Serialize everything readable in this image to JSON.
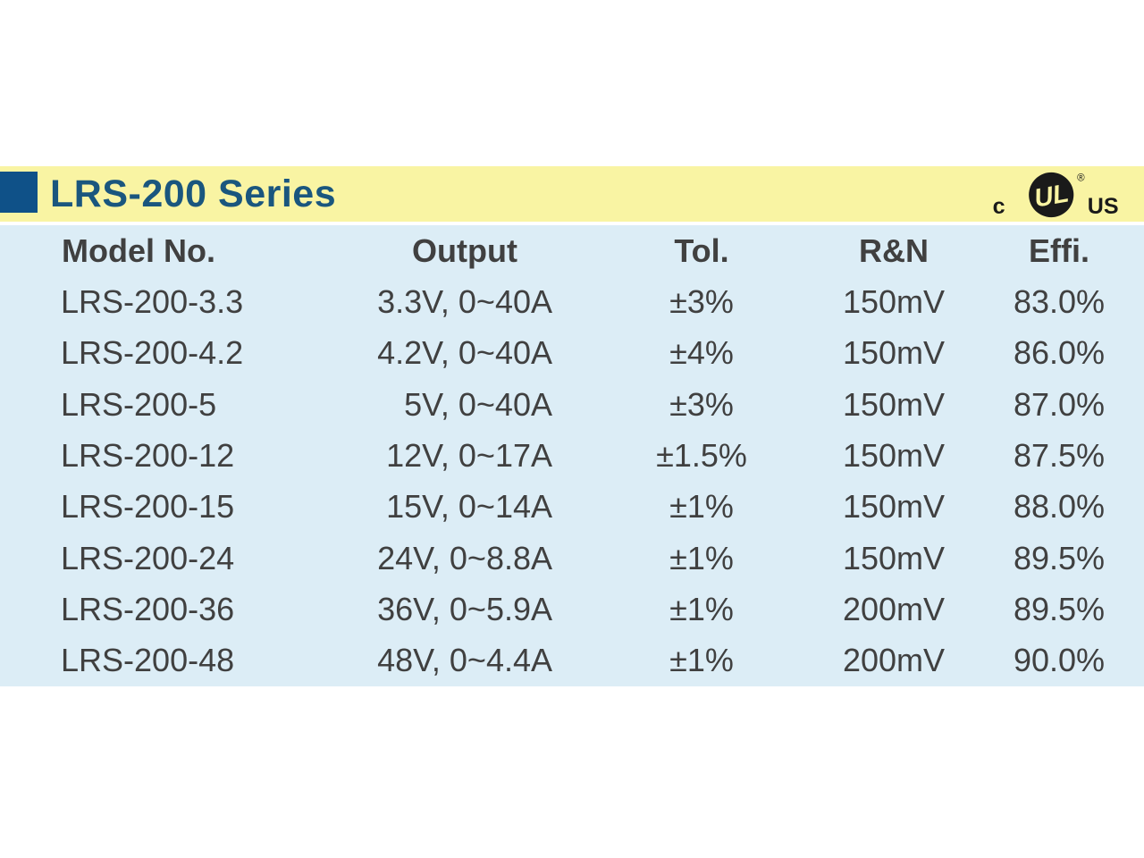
{
  "page": {
    "background_color": "#FFFFFF"
  },
  "header": {
    "title": "LRS-200 Series",
    "band_color": "#F9F4A3",
    "accent_color": "#0F5188",
    "title_color": "#1A567E",
    "ul_mark": {
      "c_label": "c",
      "monogram": "UL",
      "us_label": "US",
      "registered_symbol": "®",
      "color": "#1A1A1A"
    }
  },
  "spec_table": {
    "background_color": "#DCEDF6",
    "text_color": "#404040",
    "columns": [
      "Model No.",
      "Output",
      "Tol.",
      "R&N",
      "Effi."
    ],
    "rows": [
      [
        "LRS-200-3.3",
        "3.3V, 0~40A",
        "±3%",
        "150mV",
        "83.0%"
      ],
      [
        "LRS-200-4.2",
        "4.2V, 0~40A",
        "±4%",
        "150mV",
        "86.0%"
      ],
      [
        "LRS-200-5",
        "5V, 0~40A",
        "±3%",
        "150mV",
        "87.0%"
      ],
      [
        "LRS-200-12",
        "12V, 0~17A",
        "±1.5%",
        "150mV",
        "87.5%"
      ],
      [
        "LRS-200-15",
        "15V, 0~14A",
        "±1%",
        "150mV",
        "88.0%"
      ],
      [
        "LRS-200-24",
        "24V, 0~8.8A",
        "±1%",
        "150mV",
        "89.5%"
      ],
      [
        "LRS-200-36",
        "36V, 0~5.9A",
        "±1%",
        "200mV",
        "89.5%"
      ],
      [
        "LRS-200-48",
        "48V, 0~4.4A",
        "±1%",
        "200mV",
        "90.0%"
      ]
    ]
  }
}
